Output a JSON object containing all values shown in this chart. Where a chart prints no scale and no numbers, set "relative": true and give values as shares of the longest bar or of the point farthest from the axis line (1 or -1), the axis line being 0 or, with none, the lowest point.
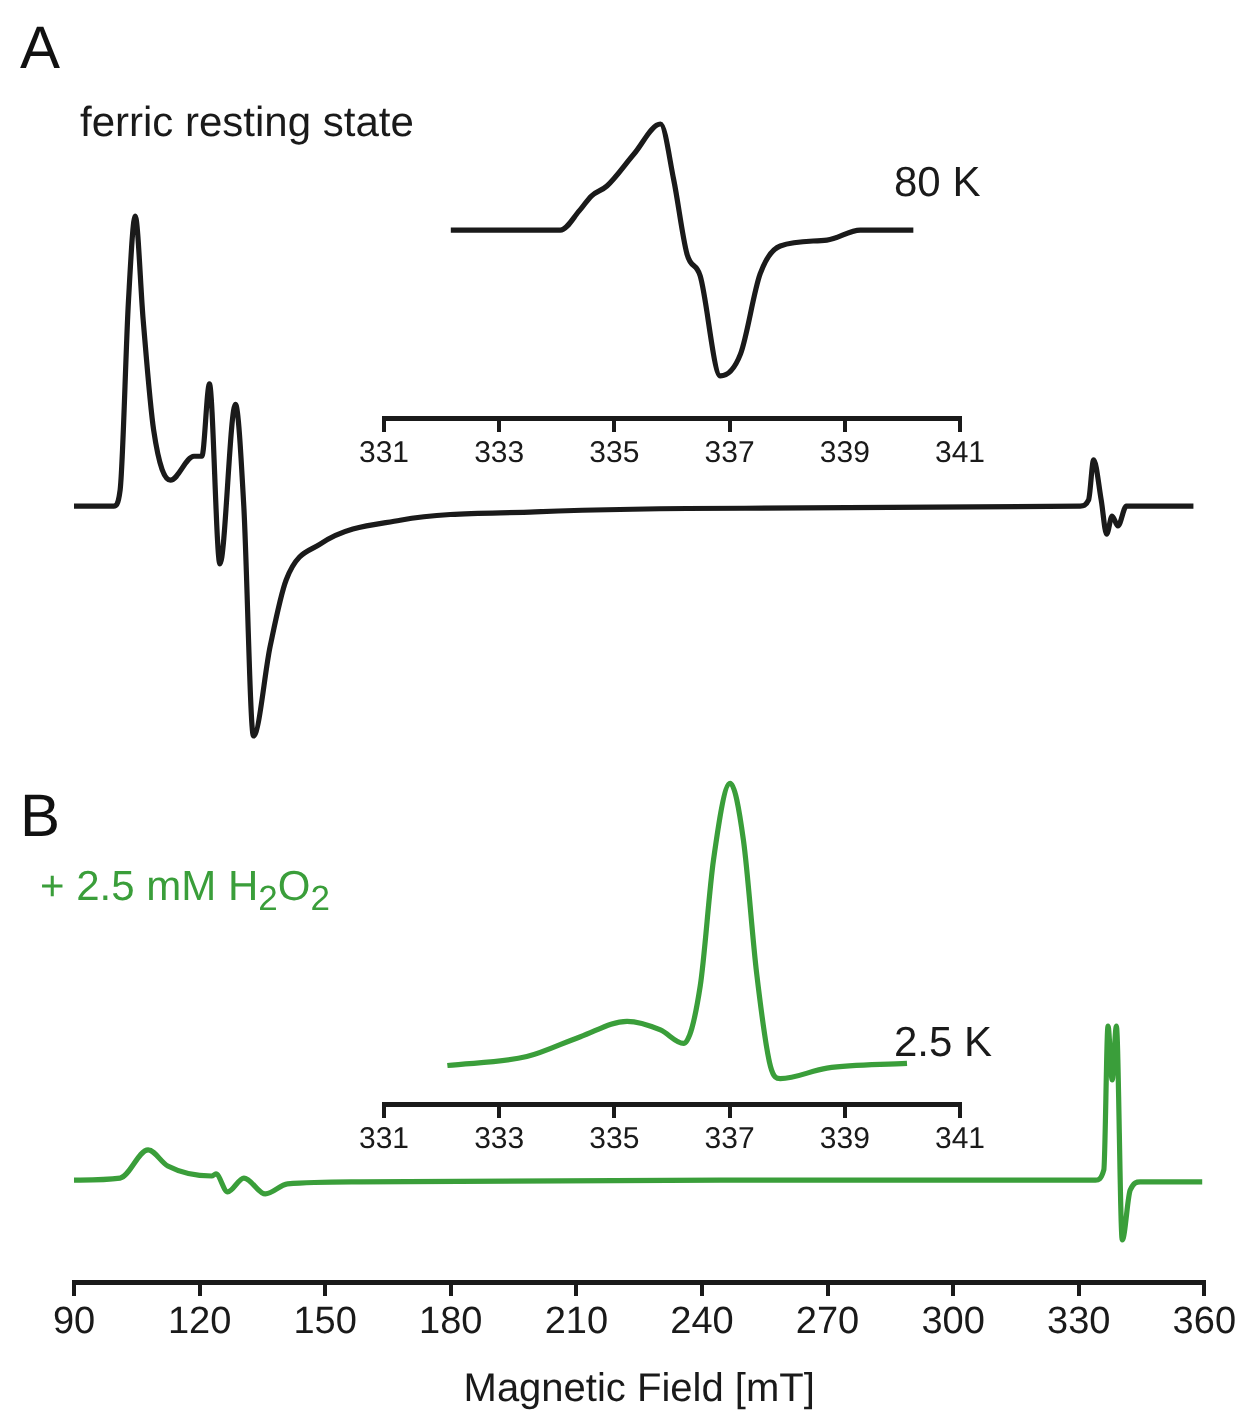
{
  "chart_data": [
    {
      "type": "line",
      "title": "A",
      "annotations": [
        "ferric resting state"
      ],
      "relative": true,
      "marker": "none",
      "tick_labels": false,
      "xlim": [
        90,
        360
      ],
      "xticks": [
        90,
        120,
        150,
        180,
        210,
        240,
        270,
        300,
        330,
        360
      ],
      "x": [
        90,
        99.5,
        101,
        103,
        104.6,
        106.5,
        109,
        113,
        118.6,
        120.5,
        122.3,
        124.8,
        128.5,
        130.5,
        132.8,
        136.8,
        140.6,
        148.7,
        167.8,
        200,
        250,
        330,
        332,
        333.2,
        335,
        336.3,
        337.6,
        339,
        341,
        357
      ],
      "series": [
        {
          "color": "#1a1a1a",
          "values": [
            0.442,
            0.442,
            0.473,
            0.838,
            1.0,
            0.8,
            0.588,
            0.492,
            0.538,
            0.538,
            0.677,
            0.331,
            0.638,
            0.442,
            0,
            0.173,
            0.3,
            0.369,
            0.415,
            0.431,
            0.438,
            0.442,
            0.454,
            0.531,
            0.454,
            0.388,
            0.423,
            0.404,
            0.442,
            0.442
          ]
        }
      ]
    },
    {
      "type": "line",
      "annotations": [
        "80 K"
      ],
      "relative": true,
      "marker": "none",
      "tick_labels": "x",
      "xlim": [
        331,
        341
      ],
      "xticks": [
        331,
        333,
        335,
        337,
        339,
        341
      ],
      "x": [
        332.16,
        334.06,
        334.4,
        334.6,
        334.87,
        335.34,
        335.8,
        336.03,
        336.26,
        336.49,
        336.84,
        337.19,
        337.53,
        337.88,
        338.69,
        339.27,
        340.19
      ],
      "series": [
        {
          "color": "#1a1a1a",
          "values": [
            0.639,
            0.639,
            0.707,
            0.755,
            0.789,
            0.898,
            1,
            0.81,
            0.558,
            0.483,
            0.143,
            0.218,
            0.49,
            0.585,
            0.605,
            0.639,
            0.639
          ]
        }
      ]
    },
    {
      "type": "line",
      "title": "B",
      "annotations": [
        "+ 2.5 mM H$_{2}$O$_{2}$"
      ],
      "xlabel": "Magnetic Field [mT]",
      "relative": true,
      "marker": "none",
      "xlim": [
        90,
        360
      ],
      "xticks": [
        90,
        120,
        150,
        180,
        210,
        240,
        270,
        300,
        330,
        360
      ],
      "x": [
        90,
        101,
        107.7,
        112.4,
        122.9,
        123.9,
        126.7,
        130.6,
        135.7,
        141,
        158.2,
        250,
        334,
        336,
        337,
        338,
        339,
        340.4,
        342.3,
        344.7,
        359.5
      ],
      "series": [
        {
          "color": "#3a9e3a",
          "values": [
            0.398,
            0.406,
            0.516,
            0.453,
            0.414,
            0.422,
            0.352,
            0.406,
            0.344,
            0.383,
            0.391,
            0.398,
            0.398,
            0.438,
            1,
            0.789,
            1,
            0.164,
            0.359,
            0.391,
            0.391
          ]
        }
      ]
    },
    {
      "type": "line",
      "annotations": [
        "2.5 K"
      ],
      "relative": true,
      "marker": "none",
      "tick_labels": "x",
      "xlim": [
        331,
        341
      ],
      "xticks": [
        331,
        333,
        335,
        337,
        339,
        341
      ],
      "x": [
        332.1,
        333.48,
        334.41,
        335.22,
        335.8,
        336.2,
        336.49,
        336.72,
        337.01,
        337.24,
        337.47,
        337.71,
        337.88,
        338.69,
        340.08
      ],
      "series": [
        {
          "color": "#3a9e3a",
          "values": [
            0.12,
            0.148,
            0.21,
            0.258,
            0.231,
            0.189,
            0.368,
            0.761,
            1,
            0.823,
            0.407,
            0.117,
            0.079,
            0.112,
            0.127
          ]
        }
      ]
    }
  ]
}
